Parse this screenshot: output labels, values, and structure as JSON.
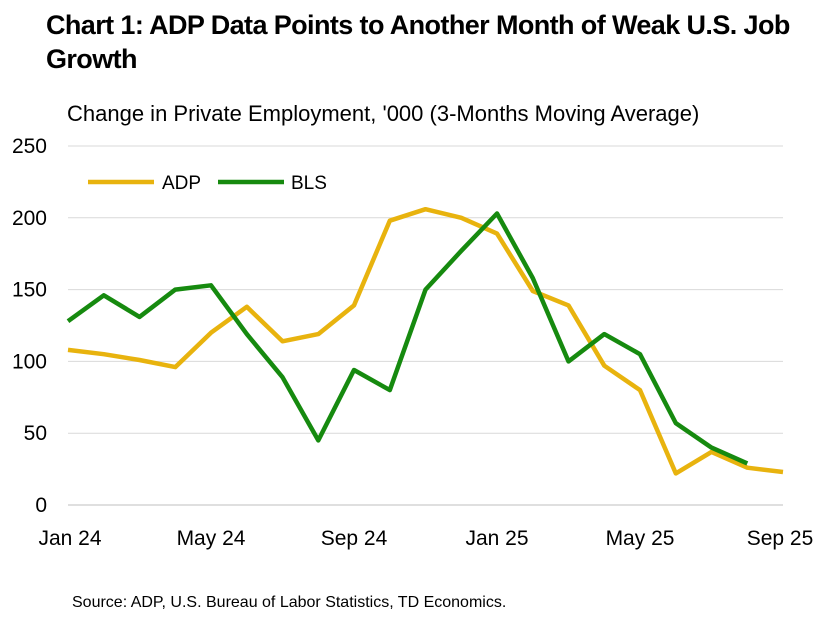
{
  "title": "Chart 1: ADP Data Points to Another Month of Weak U.S. Job Growth",
  "source": "Source: ADP, U.S. Bureau of Labor Statistics, TD Economics.",
  "chart_data": {
    "type": "line",
    "title": "Chart 1: ADP Data Points to Another Month of Weak U.S. Job Growth",
    "subtitle": "Change in Private Employment, '000 (3-Months Moving Average)",
    "xlabel": "",
    "ylabel": "",
    "ylim": [
      0,
      250
    ],
    "yticks": [
      0,
      50,
      100,
      150,
      200,
      250
    ],
    "x": [
      "Jan 24",
      "Feb 24",
      "Mar 24",
      "Apr 24",
      "May 24",
      "Jun 24",
      "Jul 24",
      "Aug 24",
      "Sep 24",
      "Oct 24",
      "Nov 24",
      "Dec 24",
      "Jan 25",
      "Feb 25",
      "Mar 25",
      "Apr 25",
      "May 25",
      "Jun 25",
      "Jul 25",
      "Aug 25",
      "Sep 25"
    ],
    "xtick_labels": [
      "Jan 24",
      "May 24",
      "Sep 24",
      "Jan 25",
      "May 25",
      "Sep 25"
    ],
    "grid": true,
    "legend": "top-left",
    "series": [
      {
        "name": "ADP",
        "color": "#E8B30E",
        "values": [
          108,
          105,
          101,
          96,
          120,
          138,
          114,
          119,
          139,
          198,
          206,
          200,
          189,
          149,
          139,
          97,
          80,
          22,
          37,
          26,
          23
        ]
      },
      {
        "name": "BLS",
        "color": "#168A0F",
        "values": [
          128,
          146,
          131,
          150,
          153,
          119,
          89,
          45,
          94,
          80,
          150,
          177,
          203,
          158,
          100,
          119,
          105,
          57,
          40,
          29,
          null
        ]
      }
    ]
  }
}
